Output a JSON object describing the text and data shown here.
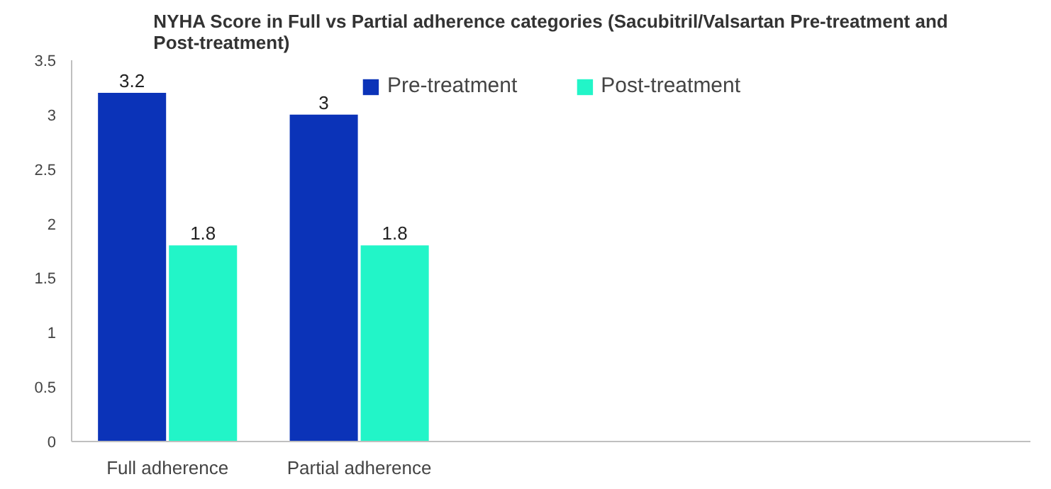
{
  "chart_data": {
    "type": "bar",
    "title": "NYHA Score in Full vs Partial adherence categories (Sacubitril/Valsartan Pre-treatment and Post-treatment)",
    "categories": [
      "Full adherence",
      "Partial adherence",
      null,
      null,
      null
    ],
    "series": [
      {
        "name": "Pre-treatment",
        "color": "#0b33b8",
        "values": [
          3.2,
          3,
          null,
          null,
          null
        ]
      },
      {
        "name": "Post-treatment",
        "color": "#22f5c8",
        "values": [
          1.8,
          1.8,
          null,
          null,
          null
        ]
      }
    ],
    "ylim": [
      0,
      3.5
    ],
    "yticks": [
      0,
      0.5,
      1,
      1.5,
      2,
      2.5,
      3,
      3.5
    ],
    "grid": false,
    "legend": "top",
    "data_labels": true
  }
}
